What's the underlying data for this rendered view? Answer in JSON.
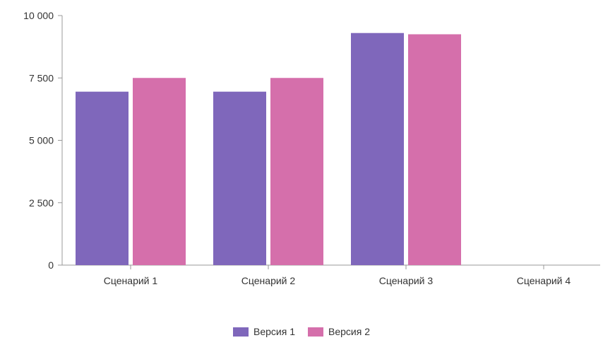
{
  "chart_data": {
    "type": "bar",
    "categories": [
      "Сценарий 1",
      "Сценарий 2",
      "Сценарий 3",
      "Сценарий 4"
    ],
    "series": [
      {
        "name": "Версия 1",
        "color": "#7f67bb",
        "values": [
          6950,
          6950,
          9300,
          null
        ]
      },
      {
        "name": "Версия 2",
        "color": "#d56fab",
        "values": [
          7500,
          7500,
          9250,
          null
        ]
      }
    ],
    "ylim": [
      0,
      10000
    ],
    "yticks": [
      0,
      2500,
      5000,
      7500,
      10000
    ],
    "ytick_labels": [
      "0",
      "2 500",
      "5 000",
      "7 500",
      "10 000"
    ],
    "grid": false,
    "legend_position": "bottom-center"
  }
}
